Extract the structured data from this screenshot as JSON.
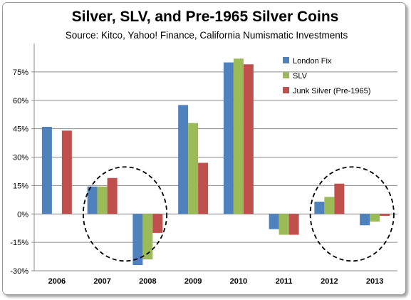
{
  "chart_data": {
    "type": "bar",
    "title": "Silver, SLV, and Pre-1965 Silver Coins",
    "subtitle": "Source: Kitco, Yahoo! Finance, California Numismatic Investments",
    "categories": [
      "2006",
      "2007",
      "2008",
      "2009",
      "2010",
      "2011",
      "2012",
      "2013"
    ],
    "series": [
      {
        "name": "London Fix",
        "color": "#4f81bd",
        "values": [
          46,
          14.5,
          -27,
          57.5,
          80,
          -8,
          6.5,
          -6
        ]
      },
      {
        "name": "SLV",
        "color": "#9bbb59",
        "values": [
          null,
          14.5,
          -24,
          48,
          82,
          -11,
          9,
          -4
        ]
      },
      {
        "name": "Junk Silver (Pre-1965)",
        "color": "#c0504d",
        "values": [
          44,
          19,
          -10,
          27,
          79,
          -11,
          16,
          -1
        ]
      }
    ],
    "ylim": [
      -30,
      90
    ],
    "yticks": [
      -30,
      -15,
      0,
      15,
      30,
      45,
      60,
      75
    ],
    "ytick_labels": [
      "-30%",
      "-15%",
      "0%",
      "15%",
      "30%",
      "45%",
      "60%",
      "75%"
    ],
    "xlabel": "",
    "ylabel": "",
    "grid": true,
    "legend_position": "top-right",
    "annotations": [
      {
        "type": "dashed-circle",
        "around": [
          "2007",
          "2008"
        ]
      },
      {
        "type": "dashed-circle",
        "around": [
          "2012",
          "2013"
        ]
      }
    ]
  }
}
